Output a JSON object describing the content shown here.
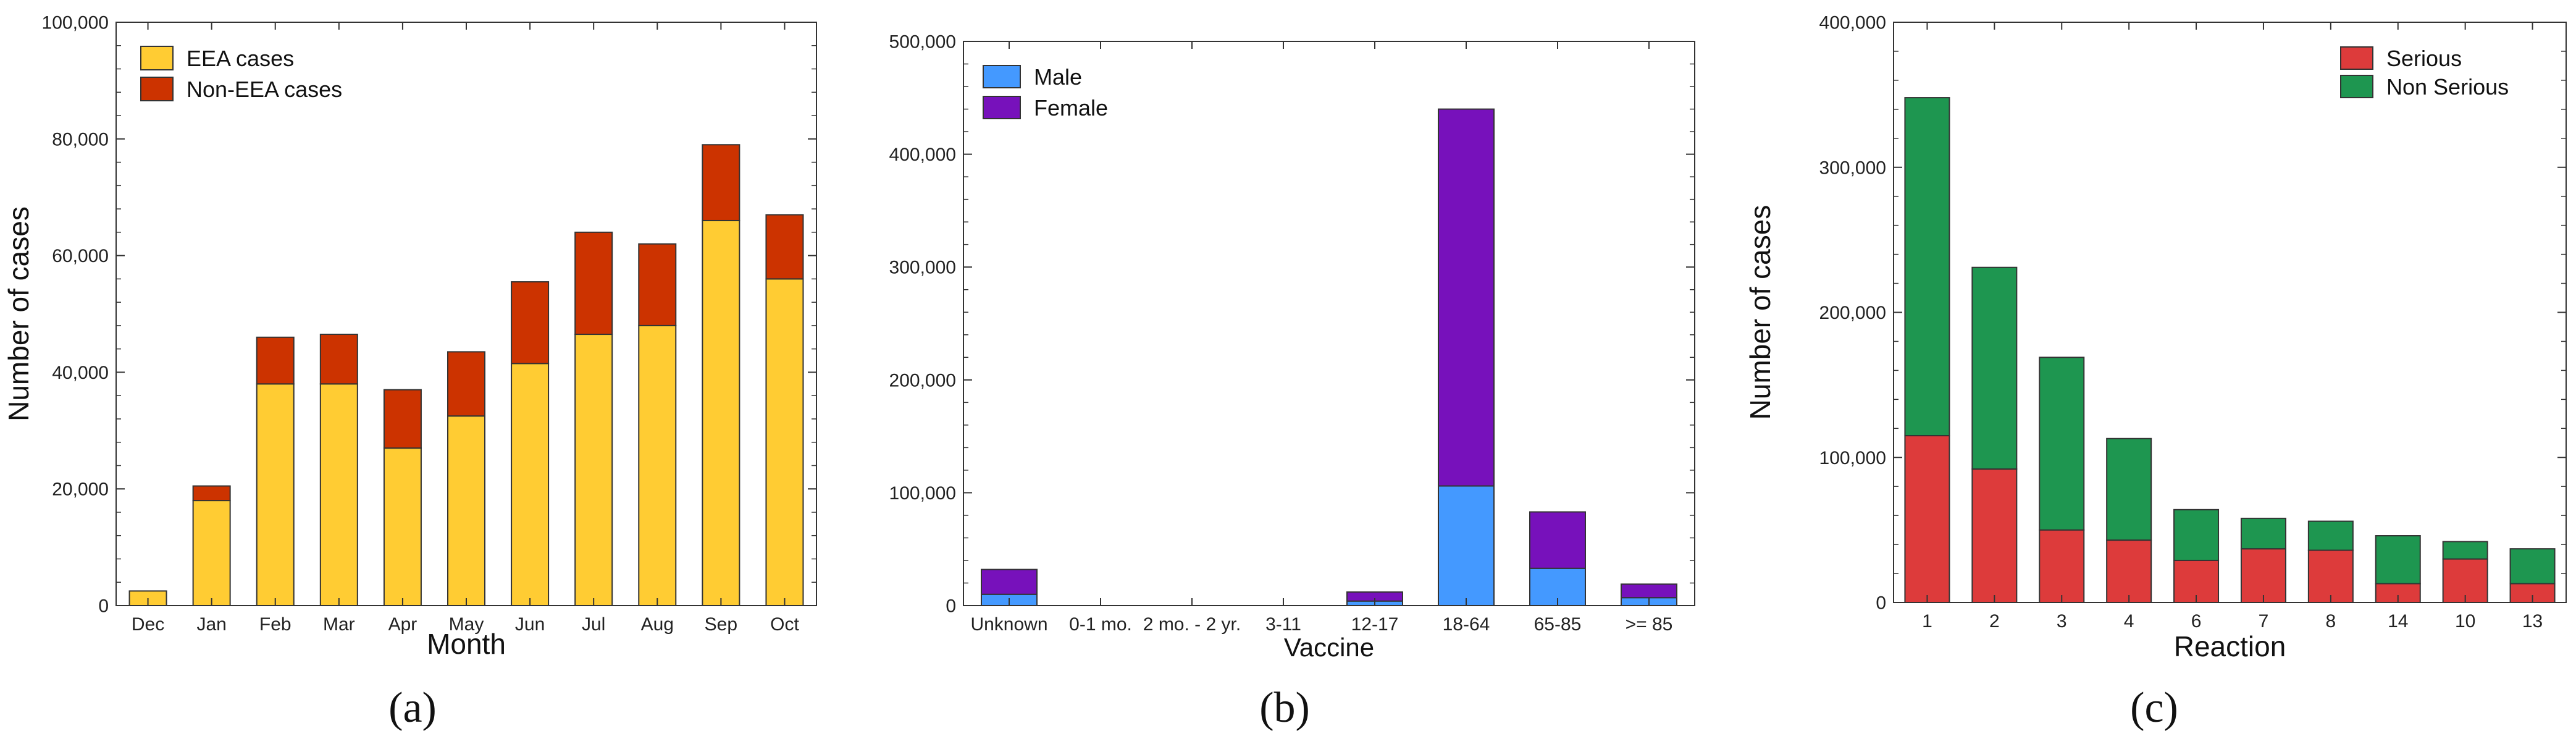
{
  "chart_data": [
    {
      "type": "bar",
      "stacked": true,
      "panel_label": "(a)",
      "xlabel": "Month",
      "ylabel": "Number of cases",
      "ylim": [
        0,
        100000
      ],
      "yticks": [
        "0",
        "20,000",
        "40,000",
        "60,000",
        "80,000",
        "100,000"
      ],
      "categories": [
        "Dec",
        "Jan",
        "Feb",
        "Mar",
        "Apr",
        "May",
        "Jun",
        "Jul",
        "Aug",
        "Sep",
        "Oct"
      ],
      "series": [
        {
          "name": "EEA cases",
          "color": "#FFCC33",
          "values": [
            2500,
            18000,
            38000,
            38000,
            27000,
            32500,
            41500,
            46500,
            48000,
            66000,
            56000
          ]
        },
        {
          "name": "Non-EEA cases",
          "color": "#CC3300",
          "values": [
            0,
            2500,
            8000,
            8500,
            10000,
            11000,
            14000,
            17500,
            14000,
            13000,
            11000
          ]
        }
      ],
      "legend": "top-left"
    },
    {
      "type": "bar",
      "stacked": true,
      "panel_label": "(b)",
      "xlabel": "Vaccine",
      "ylabel": "",
      "ylim": [
        0,
        500000
      ],
      "yticks": [
        "0",
        "100,000",
        "200,000",
        "300,000",
        "400,000",
        "500,000"
      ],
      "categories": [
        "Unknown",
        "0-1 mo.",
        "2 mo. - 2 yr.",
        "3-11",
        "12-17",
        "18-64",
        "65-85",
        ">= 85"
      ],
      "series": [
        {
          "name": "Male",
          "color": "#4499FF",
          "values": [
            10000,
            0,
            0,
            0,
            4000,
            106000,
            33000,
            7000
          ]
        },
        {
          "name": "Female",
          "color": "#7711BB",
          "values": [
            22000,
            0,
            0,
            0,
            8000,
            334000,
            50000,
            12000
          ]
        }
      ],
      "legend": "top-left"
    },
    {
      "type": "bar",
      "stacked": true,
      "panel_label": "(c)",
      "xlabel": "Reaction",
      "ylabel": "Number of cases",
      "ylim": [
        0,
        400000
      ],
      "yticks": [
        "0",
        "100,000",
        "200,000",
        "300,000",
        "400,000"
      ],
      "categories": [
        "1",
        "2",
        "3",
        "4",
        "6",
        "7",
        "8",
        "14",
        "10",
        "13"
      ],
      "series": [
        {
          "name": "Serious",
          "color": "#DD3B3B",
          "values": [
            115000,
            92000,
            50000,
            43000,
            29000,
            37000,
            36000,
            13000,
            30000,
            13000
          ]
        },
        {
          "name": "Non Serious",
          "color": "#1E9650",
          "values": [
            233000,
            139000,
            119000,
            70000,
            35000,
            21000,
            20000,
            33000,
            12000,
            24000
          ]
        }
      ],
      "legend": "top-right"
    }
  ]
}
